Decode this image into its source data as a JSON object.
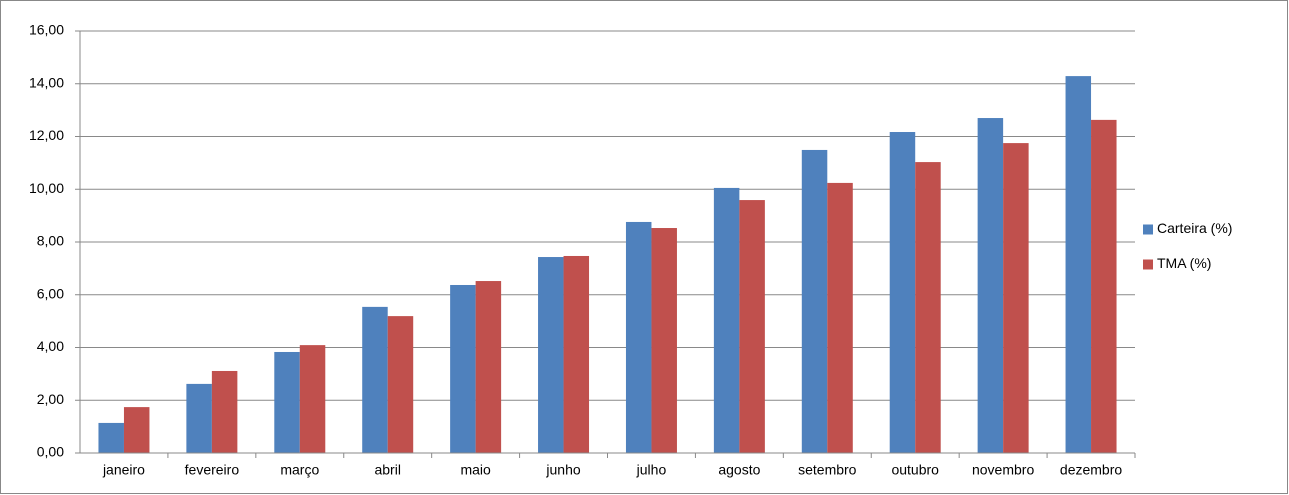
{
  "chart_data": {
    "type": "bar",
    "categories": [
      "janeiro",
      "fevereiro",
      "março",
      "abril",
      "maio",
      "junho",
      "julho",
      "agosto",
      "setembro",
      "outubro",
      "novembro",
      "dezembro"
    ],
    "series": [
      {
        "name": "Carteira (%)",
        "color": "#4f81bd",
        "values": [
          1.14,
          2.62,
          3.83,
          5.54,
          6.37,
          7.43,
          8.76,
          10.05,
          11.49,
          12.17,
          12.7,
          14.29
        ]
      },
      {
        "name": "TMA (%)",
        "color": "#c0504d",
        "values": [
          1.74,
          3.11,
          4.09,
          5.19,
          6.52,
          7.47,
          8.53,
          9.59,
          10.24,
          11.03,
          11.75,
          12.63
        ]
      }
    ],
    "ylim": [
      0,
      16
    ],
    "yticks": [
      {
        "value": 0,
        "label": "0,00"
      },
      {
        "value": 2,
        "label": "2,00"
      },
      {
        "value": 4,
        "label": "4,00"
      },
      {
        "value": 6,
        "label": "6,00"
      },
      {
        "value": 8,
        "label": "8,00"
      },
      {
        "value": 10,
        "label": "10,00"
      },
      {
        "value": 12,
        "label": "12,00"
      },
      {
        "value": 14,
        "label": "14,00"
      },
      {
        "value": 16,
        "label": "16,00"
      }
    ],
    "grid": true,
    "legend": "right"
  }
}
